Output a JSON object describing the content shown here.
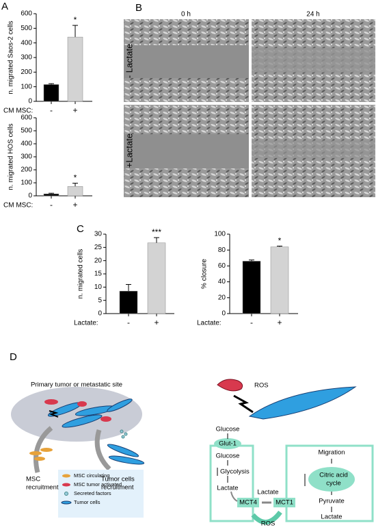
{
  "panel_labels": [
    "A",
    "B",
    "C",
    "D"
  ],
  "chart_data": [
    {
      "type": "bar",
      "ylabel": "n. migrated Saos-2 cells",
      "xlabel": "CM MSC:",
      "categories": [
        "-",
        "+"
      ],
      "values": [
        115,
        440
      ],
      "errors": [
        6,
        80
      ],
      "colors": [
        "#000000",
        "#d3d3d3"
      ],
      "ylim": [
        0,
        600
      ],
      "yticks": [
        0,
        100,
        200,
        300,
        400,
        500,
        600
      ],
      "annotations": [
        null,
        "*"
      ]
    },
    {
      "type": "bar",
      "ylabel": "n. migrated HOS cells",
      "xlabel": "CM MSC:",
      "categories": [
        "-",
        "+"
      ],
      "values": [
        15,
        72
      ],
      "errors": [
        5,
        25
      ],
      "colors": [
        "#000000",
        "#d3d3d3"
      ],
      "ylim": [
        0,
        600
      ],
      "yticks": [
        0,
        100,
        200,
        300,
        400,
        500,
        600
      ],
      "annotations": [
        null,
        "*"
      ]
    },
    {
      "type": "bar",
      "ylabel": "n. migrated cells",
      "xlabel": "Lactate:",
      "categories": [
        "-",
        "+"
      ],
      "values": [
        8.5,
        26.7
      ],
      "errors": [
        2.5,
        2
      ],
      "colors": [
        "#000000",
        "#d3d3d3"
      ],
      "ylim": [
        0,
        30
      ],
      "yticks": [
        0,
        5,
        10,
        15,
        20,
        25,
        30
      ],
      "annotations": [
        null,
        "***"
      ]
    },
    {
      "type": "bar",
      "ylabel": "% closure",
      "xlabel": "Lactate:",
      "categories": [
        "-",
        "+"
      ],
      "values": [
        66,
        84
      ],
      "errors": [
        1.5,
        1
      ],
      "colors": [
        "#000000",
        "#d3d3d3"
      ],
      "ylim": [
        0,
        100
      ],
      "yticks": [
        0,
        20,
        40,
        60,
        80,
        100
      ],
      "annotations": [
        null,
        "*"
      ]
    }
  ],
  "micrographs": {
    "columns": [
      "0 h",
      "24 h"
    ],
    "rows": [
      "- Lactate",
      "+Lactate"
    ]
  },
  "diagram": {
    "site": "Primary tumor or metastatic site",
    "msc_recruitment": [
      "MSC",
      "recruitment"
    ],
    "tumor_recruitment": [
      "Tumor cells",
      "recruitment"
    ],
    "legend": [
      "MSC circulating",
      "MSC tumor activated",
      "Secreted factors",
      "Tumor cells"
    ],
    "ros_top": "ROS",
    "glucose_out": "Glucose",
    "glut1": "Glut-1",
    "glucose_in": "Glucose",
    "glycolysis": "Glycolysis",
    "lactate_in": "Lactate",
    "mct4": "MCT4",
    "lactate_mid": "Lactate",
    "mct1": "MCT1",
    "migration": "Migration",
    "citric": [
      "Citric acid",
      "cycle"
    ],
    "pyruvate": "Pyruvate",
    "lactate_right": "Lactate",
    "ros_bottom": "ROS"
  }
}
